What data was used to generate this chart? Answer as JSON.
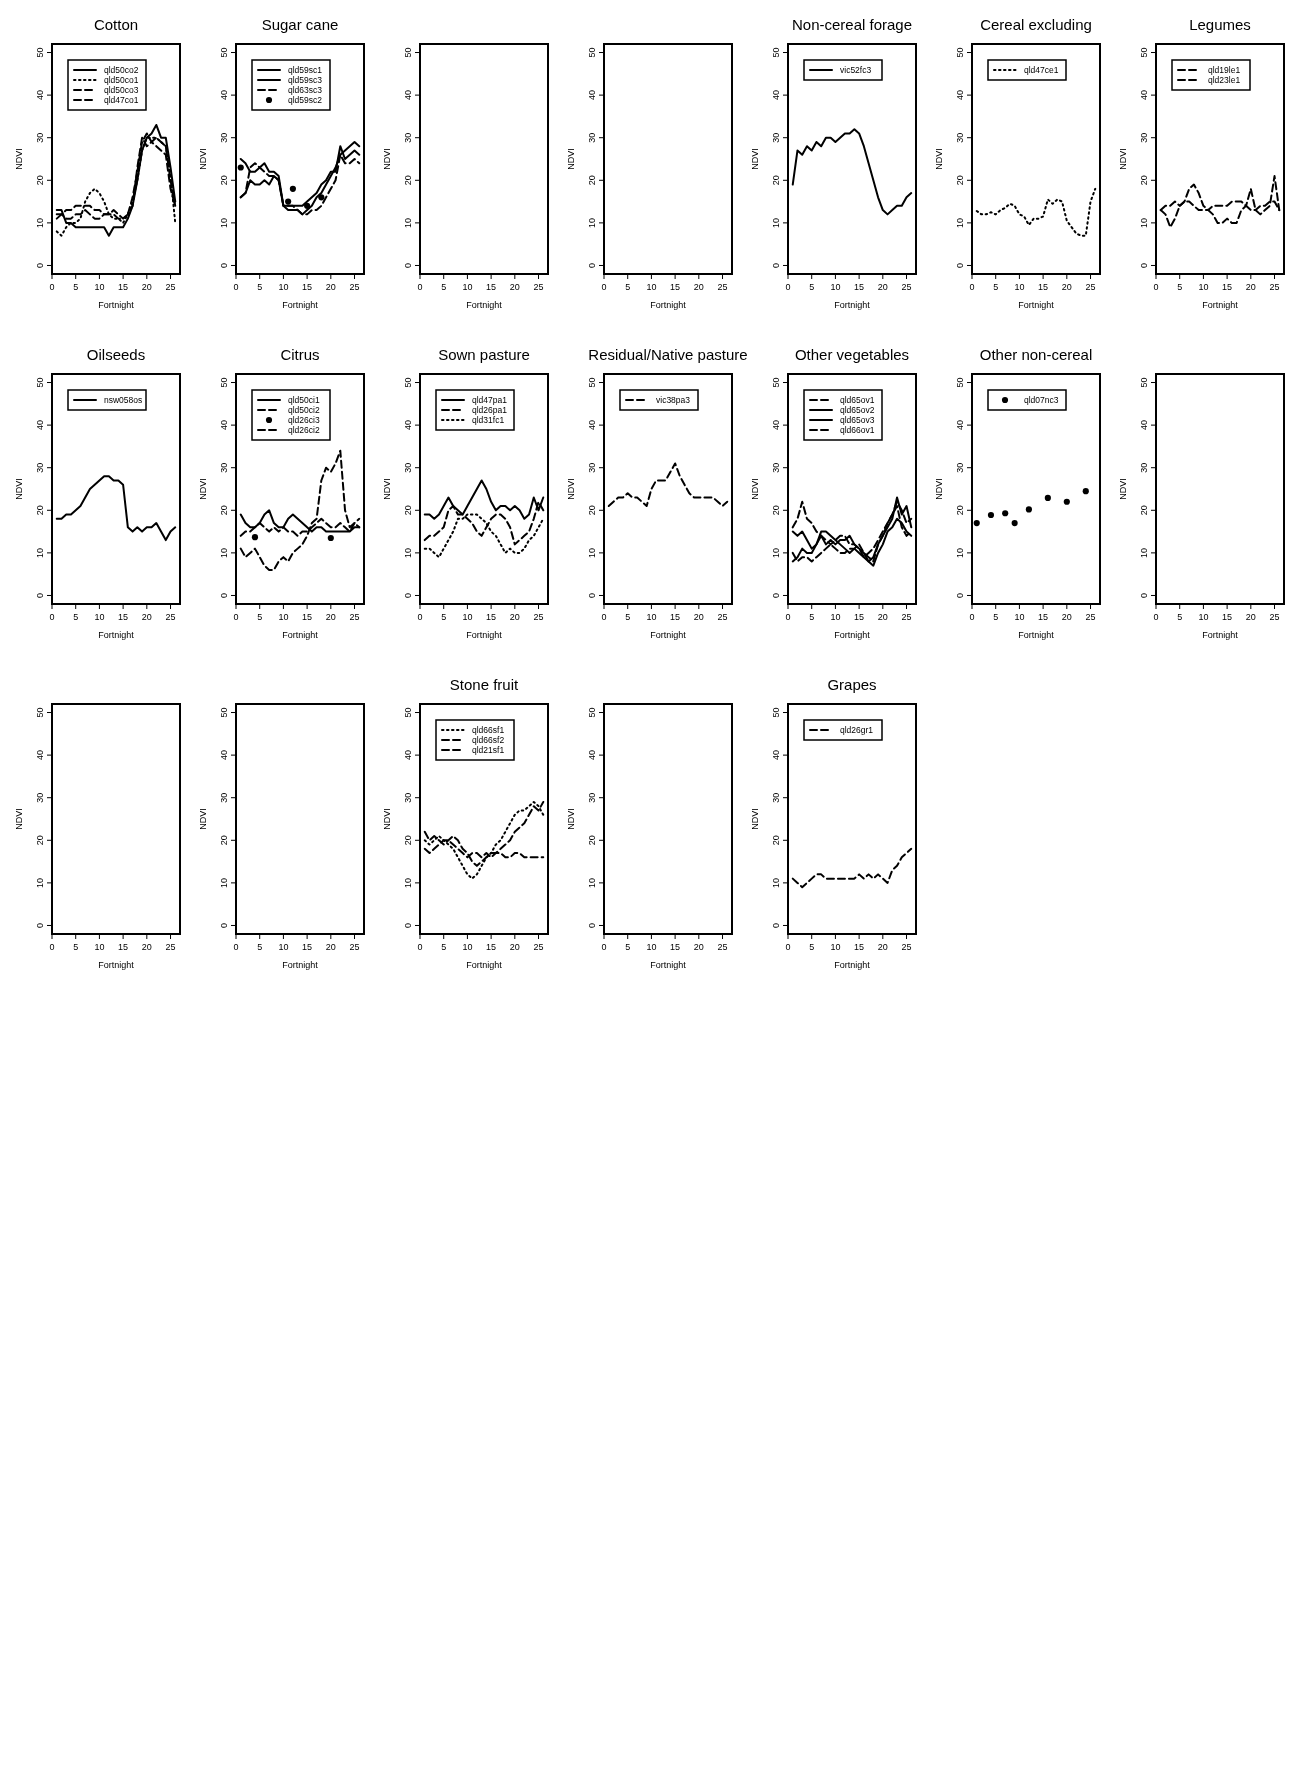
{
  "chart_data": [
    {
      "type": "line",
      "title": "Cotton",
      "xlabel": "Fortnight",
      "ylabel": "NDVI",
      "xlim": [
        0,
        27
      ],
      "ylim": [
        -2,
        52
      ],
      "xticks": [
        0,
        5,
        10,
        15,
        20,
        25
      ],
      "yticks": [
        0,
        10,
        20,
        30,
        40,
        50
      ],
      "legend": "top left",
      "x": [
        1,
        2,
        3,
        4,
        5,
        6,
        7,
        8,
        9,
        10,
        11,
        12,
        13,
        14,
        15,
        16,
        17,
        18,
        19,
        20,
        21,
        22,
        23,
        24,
        25,
        26
      ],
      "series": [
        {
          "name": "qld50co2",
          "color": "#000000",
          "line_style": "solid",
          "values": [
            13,
            13,
            10,
            10,
            9,
            9,
            9,
            9,
            9,
            9,
            9,
            7,
            9,
            9,
            9,
            11,
            14,
            20,
            27,
            30,
            31,
            33,
            30,
            30,
            23,
            15
          ]
        },
        {
          "name": "qld50co1",
          "color": "#000000",
          "line_style": "dotted",
          "values": [
            8,
            7,
            9,
            10,
            10,
            11,
            15,
            17,
            18,
            17,
            15,
            12,
            11,
            11,
            10,
            12,
            15,
            20,
            27,
            30,
            30,
            30,
            29,
            28,
            21,
            10
          ]
        },
        {
          "name": "qld50co3",
          "color": "#000000",
          "line_style": "dashed",
          "values": [
            12,
            12,
            11,
            11,
            12,
            12,
            13,
            12,
            11,
            11,
            12,
            12,
            13,
            12,
            11,
            12,
            16,
            22,
            29,
            31,
            29,
            28,
            27,
            26,
            18,
            14
          ]
        },
        {
          "name": "qld47co1",
          "color": "#000000",
          "line_style": "dashed",
          "values": [
            11,
            12,
            13,
            13,
            14,
            14,
            14,
            14,
            13,
            13,
            12,
            12,
            12,
            11,
            11,
            12,
            14,
            23,
            30,
            28,
            29,
            30,
            29,
            28,
            20,
            14
          ]
        }
      ]
    },
    {
      "type": "line",
      "title": "Sugar cane",
      "xlabel": "Fortnight",
      "ylabel": "NDVI",
      "xlim": [
        0,
        27
      ],
      "ylim": [
        -2,
        52
      ],
      "xticks": [
        0,
        5,
        10,
        15,
        20,
        25
      ],
      "yticks": [
        0,
        10,
        20,
        30,
        40,
        50
      ],
      "legend": "top left",
      "x": [
        1,
        2,
        3,
        4,
        5,
        6,
        7,
        8,
        9,
        10,
        11,
        12,
        13,
        14,
        15,
        16,
        17,
        18,
        19,
        20,
        21,
        22,
        23,
        24,
        25,
        26
      ],
      "series": [
        {
          "name": "qld59sc1",
          "color": "#000000",
          "line_style": "solid",
          "values": [
            16,
            17,
            20,
            19,
            19,
            20,
            19,
            21,
            20,
            14,
            14,
            14,
            14,
            14,
            15,
            16,
            17,
            19,
            20,
            22,
            22,
            28,
            25,
            26,
            27,
            26
          ]
        },
        {
          "name": "qld59sc3",
          "color": "#000000",
          "line_style": "solid",
          "values": [
            25,
            24,
            22,
            22,
            23,
            24,
            22,
            22,
            21,
            14,
            13,
            13,
            13,
            12,
            13,
            14,
            16,
            17,
            19,
            21,
            23,
            26,
            27,
            28,
            29,
            28
          ]
        },
        {
          "name": "qld63sc3",
          "color": "#000000",
          "line_style": "dashed",
          "values": [
            16,
            17,
            23,
            24,
            23,
            22,
            21,
            21,
            20,
            14,
            14,
            14,
            13,
            12,
            12,
            13,
            13,
            14,
            16,
            18,
            20,
            26,
            24,
            24,
            25,
            24
          ]
        },
        {
          "name": "qld59sc2",
          "type": "scatter",
          "marker": "circle",
          "color": "#000000",
          "x": [
            1,
            11,
            12,
            15,
            18
          ],
          "values": [
            23,
            15,
            18,
            14,
            16
          ]
        }
      ]
    },
    {
      "type": "line",
      "xlabel": "Fortnight",
      "ylabel": "NDVI",
      "xlim": [
        0,
        27
      ],
      "ylim": [
        -2,
        52
      ],
      "xticks": [
        0,
        5,
        10,
        15,
        20,
        25
      ],
      "yticks": [
        0,
        10,
        20,
        30,
        40,
        50
      ]
    },
    {
      "type": "line",
      "xlabel": "Fortnight",
      "ylabel": "NDVI",
      "xlim": [
        0,
        27
      ],
      "ylim": [
        -2,
        52
      ],
      "xticks": [
        0,
        5,
        10,
        15,
        20,
        25
      ],
      "yticks": [
        0,
        10,
        20,
        30,
        40,
        50
      ]
    },
    {
      "type": "line",
      "title": "Non-cereal forage",
      "xlabel": "Fortnight",
      "ylabel": "NDVI",
      "xlim": [
        0,
        27
      ],
      "ylim": [
        -2,
        52
      ],
      "xticks": [
        0,
        5,
        10,
        15,
        20,
        25
      ],
      "yticks": [
        0,
        10,
        20,
        30,
        40,
        50
      ],
      "legend": "top left",
      "x": [
        1,
        2,
        3,
        4,
        5,
        6,
        7,
        8,
        9,
        10,
        11,
        12,
        13,
        14,
        15,
        16,
        17,
        18,
        19,
        20,
        21,
        22,
        23,
        24,
        25,
        26
      ],
      "series": [
        {
          "name": "vic52fc3",
          "color": "#000000",
          "line_style": "solid",
          "values": [
            19,
            27,
            26,
            28,
            27,
            29,
            28,
            30,
            30,
            29,
            30,
            31,
            31,
            32,
            31,
            28,
            24,
            20,
            16,
            13,
            12,
            13,
            14,
            14,
            16,
            17
          ]
        }
      ]
    },
    {
      "type": "line",
      "title": "Cereal excluding",
      "xlabel": "Fortnight",
      "ylabel": "NDVI",
      "xlim": [
        0,
        27
      ],
      "ylim": [
        -2,
        52
      ],
      "xticks": [
        0,
        5,
        10,
        15,
        20,
        25
      ],
      "yticks": [
        0,
        10,
        20,
        30,
        40,
        50
      ],
      "legend": "top left",
      "x": [
        1,
        2,
        3,
        4,
        5,
        6,
        7,
        8,
        9,
        10,
        11,
        12,
        13,
        14,
        15,
        16,
        17,
        18,
        19,
        20,
        21,
        22,
        23,
        24,
        25,
        26
      ],
      "series": [
        {
          "name": "qld47ce1",
          "color": "#000000",
          "line_style": "dotted",
          "values": [
            12.8,
            12,
            12,
            12.5,
            12,
            13,
            13.5,
            14.5,
            14,
            12,
            11.5,
            9.5,
            11,
            11,
            11.5,
            15.5,
            14.5,
            15.5,
            15,
            10.5,
            9,
            7.5,
            7,
            7,
            15,
            18
          ]
        }
      ]
    },
    {
      "type": "line",
      "title": "Legumes",
      "xlabel": "Fortnight",
      "ylabel": "NDVI",
      "xlim": [
        0,
        27
      ],
      "ylim": [
        -2,
        52
      ],
      "xticks": [
        0,
        5,
        10,
        15,
        20,
        25
      ],
      "yticks": [
        0,
        10,
        20,
        30,
        40,
        50
      ],
      "legend": "top left",
      "x": [
        1,
        2,
        3,
        4,
        5,
        6,
        7,
        8,
        9,
        10,
        11,
        12,
        13,
        14,
        15,
        16,
        17,
        18,
        19,
        20,
        21,
        22,
        23,
        24,
        25,
        26
      ],
      "series": [
        {
          "name": "qld19le1",
          "color": "#000000",
          "line_style": "dashed",
          "values": [
            13,
            12,
            9,
            11,
            14,
            15,
            18,
            19,
            17,
            14,
            13,
            12,
            10,
            10,
            11,
            10,
            10,
            13,
            14,
            18,
            13,
            12,
            13,
            14,
            21,
            13
          ]
        },
        {
          "name": "qld23le1",
          "color": "#000000",
          "line_style": "dashed",
          "values": [
            13,
            14,
            14,
            15,
            14,
            15,
            15,
            14,
            13,
            13,
            13,
            14,
            14,
            14,
            14,
            15,
            15,
            15,
            14,
            13,
            13,
            14,
            14,
            15,
            15,
            13
          ]
        }
      ]
    },
    {
      "type": "line",
      "title": "Oilseeds",
      "xlabel": "Fortnight",
      "ylabel": "NDVI",
      "xlim": [
        0,
        27
      ],
      "ylim": [
        -2,
        52
      ],
      "xticks": [
        0,
        5,
        10,
        15,
        20,
        25
      ],
      "yticks": [
        0,
        10,
        20,
        30,
        40,
        50
      ],
      "legend": "top left",
      "x": [
        1,
        2,
        3,
        4,
        5,
        6,
        7,
        8,
        9,
        10,
        11,
        12,
        13,
        14,
        15,
        16,
        17,
        18,
        19,
        20,
        21,
        22,
        23,
        24,
        25,
        26
      ],
      "series": [
        {
          "name": "nsw058os",
          "color": "#000000",
          "line_style": "solid",
          "values": [
            18,
            18,
            19,
            19,
            20,
            21,
            23,
            25,
            26,
            27,
            28,
            28,
            27,
            27,
            26,
            16,
            15,
            16,
            15,
            16,
            16,
            17,
            15,
            13,
            15,
            16
          ]
        }
      ]
    },
    {
      "type": "line",
      "title": "Citrus",
      "xlabel": "Fortnight",
      "ylabel": "NDVI",
      "xlim": [
        0,
        27
      ],
      "ylim": [
        -2,
        52
      ],
      "xticks": [
        0,
        5,
        10,
        15,
        20,
        25
      ],
      "yticks": [
        0,
        10,
        20,
        30,
        40,
        50
      ],
      "legend": "top left",
      "x": [
        1,
        2,
        3,
        4,
        5,
        6,
        7,
        8,
        9,
        10,
        11,
        12,
        13,
        14,
        15,
        16,
        17,
        18,
        19,
        20,
        21,
        22,
        23,
        24,
        25,
        26
      ],
      "series": [
        {
          "name": "qld50ci1",
          "color": "#000000",
          "line_style": "solid",
          "values": [
            19,
            17,
            16,
            16,
            17,
            19,
            20,
            17,
            16,
            16,
            18,
            19,
            18,
            17,
            16,
            15,
            16,
            16,
            15,
            15,
            15,
            15,
            15,
            15,
            16,
            16
          ]
        },
        {
          "name": "qld50ci2",
          "color": "#000000",
          "line_style": "dashed",
          "values": [
            14,
            15,
            15,
            16,
            17,
            16,
            15,
            16,
            15,
            16,
            15,
            15,
            14,
            15,
            15,
            16,
            17,
            18,
            17,
            16,
            16,
            17,
            16,
            15,
            17,
            18
          ]
        },
        {
          "name": "qld26ci3",
          "type": "scatter",
          "marker": "circle",
          "color": "#000000",
          "x": [
            4,
            20
          ],
          "values": [
            13.7,
            13.5
          ]
        },
        {
          "name": "qld26ci2",
          "color": "#000000",
          "line_style": "dashed",
          "values": [
            11,
            9,
            10,
            11,
            9,
            7,
            6,
            6,
            8,
            9,
            8,
            10,
            11,
            12,
            14,
            17,
            18,
            27,
            30,
            29,
            31,
            34,
            20,
            16,
            17,
            16
          ]
        }
      ]
    },
    {
      "type": "line",
      "title": "Sown pasture",
      "xlabel": "Fortnight",
      "ylabel": "NDVI",
      "xlim": [
        0,
        27
      ],
      "ylim": [
        -2,
        52
      ],
      "xticks": [
        0,
        5,
        10,
        15,
        20,
        25
      ],
      "yticks": [
        0,
        10,
        20,
        30,
        40,
        50
      ],
      "legend": "top left",
      "x": [
        1,
        2,
        3,
        4,
        5,
        6,
        7,
        8,
        9,
        10,
        11,
        12,
        13,
        14,
        15,
        16,
        17,
        18,
        19,
        20,
        21,
        22,
        23,
        24,
        25,
        26
      ],
      "series": [
        {
          "name": "qld47pa1",
          "color": "#000000",
          "line_style": "solid",
          "values": [
            19,
            19,
            18,
            19,
            21,
            23,
            21,
            20,
            19,
            21,
            23,
            25,
            27,
            25,
            22,
            20,
            21,
            21,
            20,
            21,
            20,
            18,
            19,
            23,
            20,
            23
          ]
        },
        {
          "name": "qld26pa1",
          "color": "#000000",
          "line_style": "dashed",
          "values": [
            13,
            14,
            14,
            15,
            16,
            20,
            21,
            19,
            19,
            18,
            17,
            15,
            14,
            16,
            18,
            19,
            19,
            18,
            16,
            12,
            13,
            14,
            15,
            18,
            22,
            20
          ]
        },
        {
          "name": "qld31fc1",
          "color": "#000000",
          "line_style": "dotted",
          "values": [
            11,
            11,
            10,
            9,
            11,
            13,
            15,
            18,
            18,
            19,
            19,
            19,
            18,
            17,
            15,
            14,
            12,
            10,
            11,
            10,
            10,
            11,
            13,
            14,
            16,
            18
          ]
        }
      ]
    },
    {
      "type": "line",
      "title": "Residual/Native pasture",
      "xlabel": "Fortnight",
      "ylabel": "NDVI",
      "xlim": [
        0,
        27
      ],
      "ylim": [
        -2,
        52
      ],
      "xticks": [
        0,
        5,
        10,
        15,
        20,
        25
      ],
      "yticks": [
        0,
        10,
        20,
        30,
        40,
        50
      ],
      "legend": "top left",
      "x": [
        1,
        2,
        3,
        4,
        5,
        6,
        7,
        8,
        9,
        10,
        11,
        12,
        13,
        14,
        15,
        16,
        17,
        18,
        19,
        20,
        21,
        22,
        23,
        24,
        25,
        26
      ],
      "series": [
        {
          "name": "vic38pa3",
          "color": "#000000",
          "line_style": "dashed",
          "values": [
            21,
            22,
            23,
            23,
            24,
            23,
            23,
            22,
            21,
            25,
            27,
            27,
            27,
            29,
            31,
            28,
            26,
            24,
            23,
            23,
            23,
            23,
            23,
            22,
            21,
            22
          ]
        }
      ]
    },
    {
      "type": "line",
      "title": "Other vegetables",
      "xlabel": "Fortnight",
      "ylabel": "NDVI",
      "xlim": [
        0,
        27
      ],
      "ylim": [
        -2,
        52
      ],
      "xticks": [
        0,
        5,
        10,
        15,
        20,
        25
      ],
      "yticks": [
        0,
        10,
        20,
        30,
        40,
        50
      ],
      "legend": "top left",
      "x": [
        1,
        2,
        3,
        4,
        5,
        6,
        7,
        8,
        9,
        10,
        11,
        12,
        13,
        14,
        15,
        16,
        17,
        18,
        19,
        20,
        21,
        22,
        23,
        24,
        25,
        26
      ],
      "series": [
        {
          "name": "qld65ov1",
          "color": "#000000",
          "line_style": "dashed",
          "values": [
            16,
            18,
            22,
            18,
            17,
            15,
            14,
            13,
            12,
            13,
            14,
            14,
            12,
            12,
            11,
            9,
            10,
            11,
            13,
            15,
            17,
            19,
            22,
            20,
            17,
            18
          ]
        },
        {
          "name": "qld65ov2",
          "color": "#000000",
          "line_style": "solid",
          "values": [
            15,
            14,
            15,
            13,
            11,
            12,
            14,
            12,
            13,
            12,
            13,
            13,
            14,
            12,
            11,
            10,
            8,
            9,
            12,
            14,
            16,
            18,
            23,
            19,
            21,
            16
          ]
        },
        {
          "name": "qld65ov3",
          "color": "#000000",
          "line_style": "solid",
          "values": [
            8,
            9,
            11,
            10,
            10,
            12,
            15,
            15,
            14,
            13,
            12,
            11,
            10,
            11,
            10,
            9,
            8,
            7,
            10,
            12,
            15,
            16,
            18,
            17,
            15,
            14
          ]
        },
        {
          "name": "qld66ov1",
          "color": "#000000",
          "line_style": "dashed",
          "values": [
            10,
            8,
            9,
            9,
            8,
            9,
            10,
            11,
            12,
            11,
            10,
            10,
            11,
            11,
            12,
            10,
            9,
            8,
            12,
            14,
            17,
            19,
            21,
            16,
            14,
            15
          ]
        }
      ]
    },
    {
      "type": "line",
      "title": "Other non-cereal",
      "xlabel": "Fortnight",
      "ylabel": "NDVI",
      "xlim": [
        0,
        27
      ],
      "ylim": [
        -2,
        52
      ],
      "xticks": [
        0,
        5,
        10,
        15,
        20,
        25
      ],
      "yticks": [
        0,
        10,
        20,
        30,
        40,
        50
      ],
      "legend": "top left",
      "series": [
        {
          "name": "qld07nc3",
          "type": "scatter",
          "marker": "circle",
          "color": "#000000",
          "x": [
            1,
            4,
            7,
            9,
            12,
            16,
            20,
            24
          ],
          "values": [
            17,
            18.9,
            19.3,
            17,
            20.2,
            22.9,
            22,
            24.5
          ]
        }
      ]
    },
    {
      "type": "line",
      "xlabel": "Fortnight",
      "ylabel": "NDVI",
      "xlim": [
        0,
        27
      ],
      "ylim": [
        -2,
        52
      ],
      "xticks": [
        0,
        5,
        10,
        15,
        20,
        25
      ],
      "yticks": [
        0,
        10,
        20,
        30,
        40,
        50
      ]
    },
    {
      "type": "line",
      "xlabel": "Fortnight",
      "ylabel": "NDVI",
      "xlim": [
        0,
        27
      ],
      "ylim": [
        -2,
        52
      ],
      "xticks": [
        0,
        5,
        10,
        15,
        20,
        25
      ],
      "yticks": [
        0,
        10,
        20,
        30,
        40,
        50
      ]
    },
    {
      "type": "line",
      "xlabel": "Fortnight",
      "ylabel": "NDVI",
      "xlim": [
        0,
        27
      ],
      "ylim": [
        -2,
        52
      ],
      "xticks": [
        0,
        5,
        10,
        15,
        20,
        25
      ],
      "yticks": [
        0,
        10,
        20,
        30,
        40,
        50
      ]
    },
    {
      "type": "line",
      "title": "Stone fruit",
      "xlabel": "Fortnight",
      "ylabel": "NDVI",
      "xlim": [
        0,
        27
      ],
      "ylim": [
        -2,
        52
      ],
      "xticks": [
        0,
        5,
        10,
        15,
        20,
        25
      ],
      "yticks": [
        0,
        10,
        20,
        30,
        40,
        50
      ],
      "legend": "top left",
      "x": [
        1,
        2,
        3,
        4,
        5,
        6,
        7,
        8,
        9,
        10,
        11,
        12,
        13,
        14,
        15,
        16,
        17,
        18,
        19,
        20,
        21,
        22,
        23,
        24,
        25,
        26
      ],
      "series": [
        {
          "name": "qld66sf1",
          "color": "#000000",
          "line_style": "dotted",
          "values": [
            20,
            19,
            20,
            21,
            20,
            19,
            18,
            16,
            14,
            12,
            11,
            12,
            14,
            16,
            17,
            19,
            20,
            22,
            24,
            26,
            27,
            27,
            28,
            29,
            28,
            26
          ]
        },
        {
          "name": "qld66sf2",
          "color": "#000000",
          "line_style": "dashed",
          "values": [
            22,
            20,
            21,
            20,
            19,
            20,
            21,
            20,
            18,
            17,
            15,
            14,
            15,
            16,
            17,
            17,
            18,
            19,
            20,
            22,
            23,
            24,
            26,
            28,
            27,
            29
          ]
        },
        {
          "name": "qld21sf1",
          "color": "#000000",
          "line_style": "dashed",
          "values": [
            18,
            17,
            18,
            19,
            20,
            20,
            19,
            18,
            17,
            16,
            17,
            17,
            16,
            17,
            16,
            17,
            17,
            16,
            16,
            17,
            17,
            16,
            16,
            16,
            16,
            16
          ]
        }
      ]
    },
    {
      "type": "line",
      "xlabel": "Fortnight",
      "ylabel": "NDVI",
      "xlim": [
        0,
        27
      ],
      "ylim": [
        -2,
        52
      ],
      "xticks": [
        0,
        5,
        10,
        15,
        20,
        25
      ],
      "yticks": [
        0,
        10,
        20,
        30,
        40,
        50
      ]
    },
    {
      "type": "line",
      "title": "Grapes",
      "xlabel": "Fortnight",
      "ylabel": "NDVI",
      "xlim": [
        0,
        27
      ],
      "ylim": [
        -2,
        52
      ],
      "xticks": [
        0,
        5,
        10,
        15,
        20,
        25
      ],
      "yticks": [
        0,
        10,
        20,
        30,
        40,
        50
      ],
      "legend": "top left",
      "x": [
        1,
        2,
        3,
        4,
        5,
        6,
        7,
        8,
        9,
        10,
        11,
        12,
        13,
        14,
        15,
        16,
        17,
        18,
        19,
        20,
        21,
        22,
        23,
        24,
        25,
        26
      ],
      "series": [
        {
          "name": "qld26gr1",
          "color": "#000000",
          "line_style": "dashed",
          "values": [
            11,
            10,
            9,
            10,
            11,
            12,
            12,
            11,
            11,
            11,
            11,
            11,
            11,
            11,
            12,
            11,
            12,
            11,
            12,
            11,
            10,
            13,
            14,
            16,
            17,
            18
          ]
        }
      ]
    }
  ]
}
